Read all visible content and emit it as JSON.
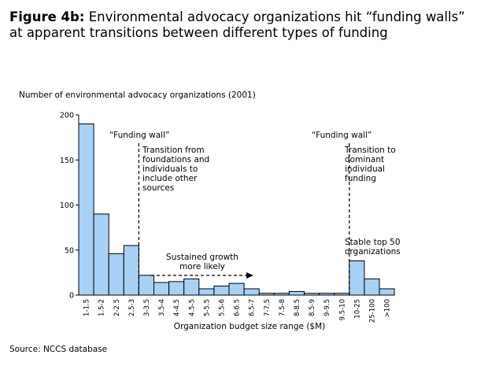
{
  "header": {
    "title_bold": "Figure 4b:",
    "title_rest": "Environmental advocacy organizations hit “funding walls” at apparent transitions between different types of funding"
  },
  "source": "Source: NCCS database",
  "colors": {
    "bar_fill": "#a9d0f5",
    "bar_stroke": "#000000"
  },
  "chart_data": {
    "type": "bar",
    "ylabel": "Number of environmental advocacy organizations (2001)",
    "xlabel": "Organization budget size range ($M)",
    "ylim": [
      0,
      200
    ],
    "yticks": [
      0,
      50,
      100,
      150,
      200
    ],
    "grid": false,
    "categories": [
      "1-1.5",
      "1.5-2",
      "2-2.5",
      "2.5-3",
      "3-3.5",
      "3.5-4",
      "4-4.5",
      "4.5-5",
      "5-5.5",
      "5.5-6",
      "6-6.5",
      "6.5-7",
      "7-7.5",
      "7.5-8",
      "8-8.5",
      "8.5-9",
      "9-9.5",
      "9.5-10",
      "10-25",
      "25-100",
      ">100"
    ],
    "values": [
      190,
      90,
      46,
      55,
      22,
      14,
      15,
      18,
      7,
      10,
      13,
      7,
      2,
      2,
      4,
      2,
      2,
      2,
      38,
      18,
      7
    ],
    "annotations": {
      "wall_label": "“Funding wall”",
      "wall1_text": [
        "Transition from",
        "foundations and",
        "individuals to",
        "include other",
        "sources"
      ],
      "wall2_text": [
        "Transition to",
        "dominant",
        "individual",
        "funding"
      ],
      "growth_text": [
        "Sustained growth",
        "more likely"
      ],
      "stable_text": [
        "Stable top 50",
        "organizations"
      ]
    }
  }
}
